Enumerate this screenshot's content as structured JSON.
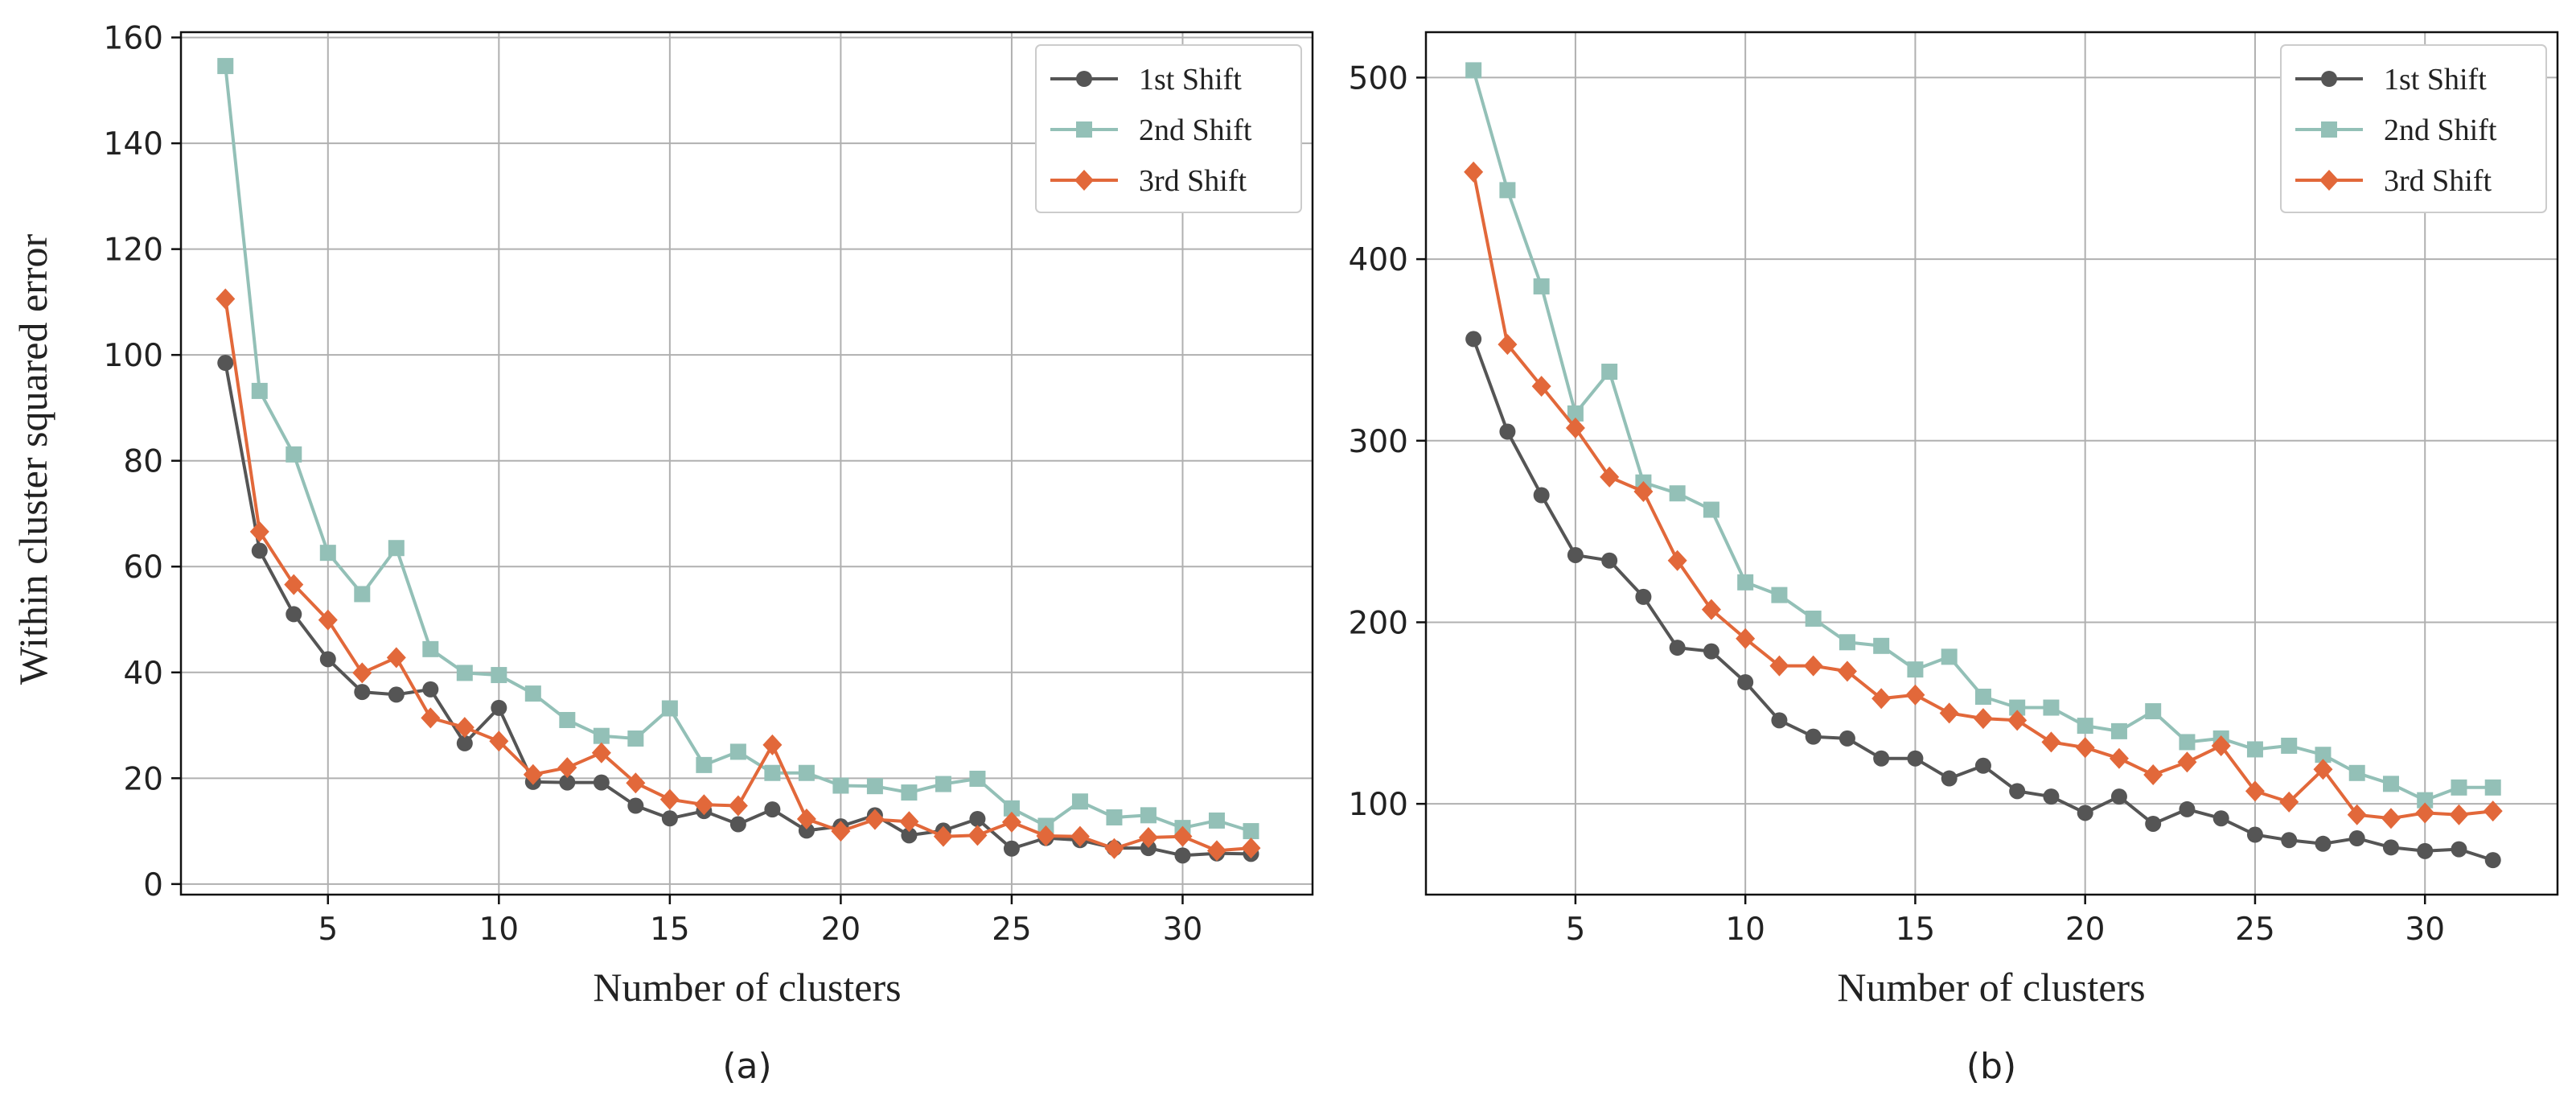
{
  "colors": {
    "1st Shift": "#555555",
    "2nd Shift": "#93c0b7",
    "3rd Shift": "#e2683a"
  },
  "markers": {
    "1st Shift": "circle",
    "2nd Shift": "square",
    "3rd Shift": "diamond"
  },
  "chart_data": [
    {
      "type": "line",
      "caption": "(a)",
      "xlabel": "Number of clusters",
      "ylabel": "Within cluster squared error",
      "xlim": [
        0.7,
        33.8
      ],
      "ylim": [
        -2,
        161
      ],
      "xticks": [
        5,
        10,
        15,
        20,
        25,
        30
      ],
      "yticks": [
        0,
        20,
        40,
        60,
        80,
        100,
        120,
        140,
        160
      ],
      "grid": true,
      "legend_position": "top-right",
      "x": [
        2,
        3,
        4,
        5,
        6,
        7,
        8,
        9,
        10,
        11,
        12,
        13,
        14,
        15,
        16,
        17,
        18,
        19,
        20,
        21,
        22,
        23,
        24,
        25,
        26,
        27,
        28,
        29,
        30,
        31,
        32
      ],
      "series": [
        {
          "name": "1st Shift",
          "values": [
            98.5,
            63.0,
            51.0,
            42.5,
            36.3,
            35.8,
            36.8,
            26.6,
            33.3,
            19.3,
            19.2,
            19.2,
            14.8,
            12.4,
            13.8,
            11.3,
            14.1,
            10.1,
            10.9,
            13.0,
            9.2,
            10.1,
            12.3,
            6.7,
            8.7,
            8.3,
            6.8,
            6.8,
            5.4,
            5.8,
            5.7
          ]
        },
        {
          "name": "2nd Shift",
          "values": [
            154.6,
            93.2,
            81.2,
            62.6,
            54.8,
            63.5,
            44.4,
            39.9,
            39.5,
            36.0,
            31.0,
            28.0,
            27.5,
            33.2,
            22.5,
            25.0,
            21.0,
            21.0,
            18.6,
            18.5,
            17.3,
            18.9,
            19.9,
            14.3,
            11.0,
            15.6,
            12.6,
            13.0,
            10.6,
            12.0,
            10.0
          ]
        },
        {
          "name": "3rd Shift",
          "values": [
            110.6,
            66.6,
            56.6,
            49.9,
            39.9,
            42.8,
            31.4,
            29.6,
            27.0,
            20.7,
            22.0,
            24.8,
            19.1,
            16.0,
            15.0,
            14.8,
            26.3,
            12.3,
            10.0,
            12.2,
            11.8,
            9.0,
            9.2,
            11.7,
            9.1,
            9.0,
            6.7,
            8.8,
            9.0,
            6.3,
            6.8
          ]
        }
      ]
    },
    {
      "type": "line",
      "caption": "(b)",
      "xlabel": "Number of clusters",
      "ylabel": "",
      "xlim": [
        0.6,
        33.9
      ],
      "ylim": [
        50,
        525
      ],
      "xticks": [
        5,
        10,
        15,
        20,
        25,
        30
      ],
      "yticks": [
        100,
        200,
        300,
        400,
        500
      ],
      "grid": true,
      "legend_position": "top-right",
      "x": [
        2,
        3,
        4,
        5,
        6,
        7,
        8,
        9,
        10,
        11,
        12,
        13,
        14,
        15,
        16,
        17,
        18,
        19,
        20,
        21,
        22,
        23,
        24,
        25,
        26,
        27,
        28,
        29,
        30,
        31,
        32
      ],
      "series": [
        {
          "name": "1st Shift",
          "values": [
            356,
            305,
            270,
            237,
            234,
            214,
            186,
            184,
            167,
            146,
            137,
            136,
            125,
            125,
            114,
            121,
            107,
            104,
            95,
            104,
            89,
            97,
            92,
            83,
            80,
            78,
            81,
            76,
            74,
            75,
            69
          ]
        },
        {
          "name": "2nd Shift",
          "values": [
            504,
            438,
            385,
            315,
            338,
            277,
            271,
            262,
            222,
            215,
            202,
            189,
            187,
            174,
            181,
            159,
            153,
            153,
            143,
            140,
            151,
            134,
            136,
            130,
            132,
            127,
            117,
            111,
            102,
            109,
            109
          ]
        },
        {
          "name": "3rd Shift",
          "values": [
            448,
            353,
            330,
            307,
            280,
            272,
            234,
            207,
            191,
            176,
            176,
            173,
            158,
            160,
            150,
            147,
            146,
            134,
            131,
            125,
            116,
            123,
            132,
            107,
            101,
            119,
            94,
            92,
            95,
            94,
            96
          ]
        }
      ]
    }
  ]
}
